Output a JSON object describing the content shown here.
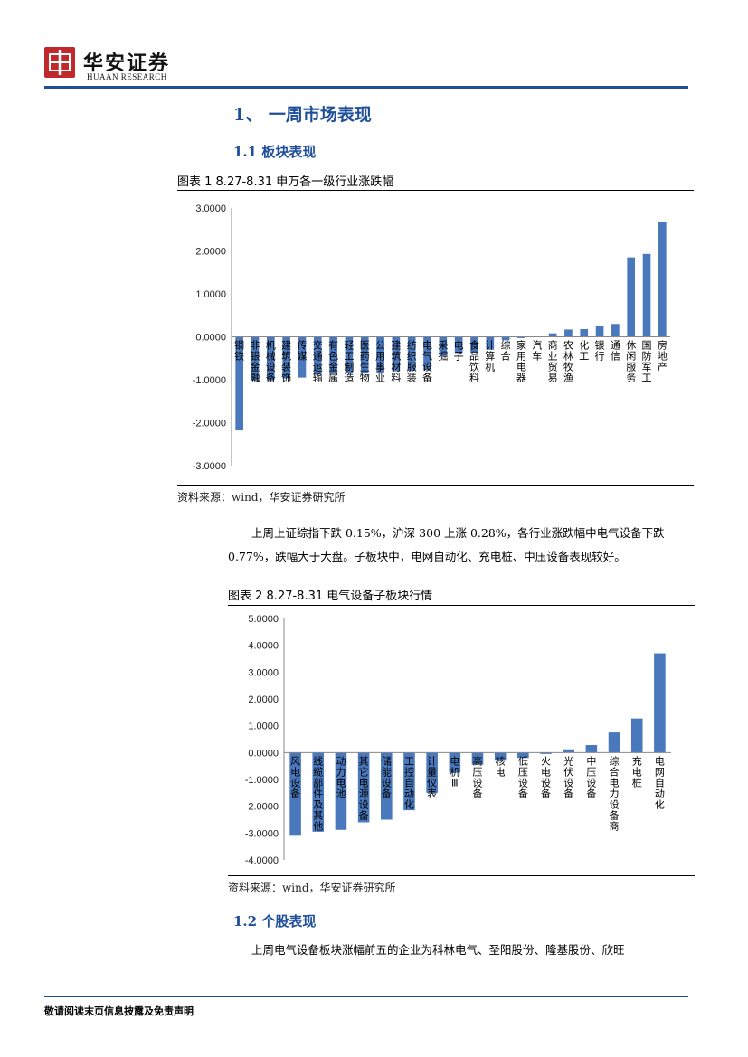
{
  "header": {
    "logo_name": "华安证券",
    "logo_sub": "HUAAN RESEARCH",
    "brand_color": "#1f4e9a",
    "logo_color": "#c0282b"
  },
  "section1_title": "1、 一周市场表现",
  "section1_1_title": "1.1  板块表现",
  "fig1": {
    "title": "图表  1 8.27-8.31 申万各一级行业涨跌幅",
    "source": "资料来源：wind，华安证券研究所"
  },
  "para1": "上周上证综指下跌 0.15%，沪深 300 上涨 0.28%，各行业涨跌幅中电气设备下跌 0.77%，跌幅大于大盘。子板块中，电网自动化、充电桩、中压设备表现较好。",
  "fig2": {
    "title": "图表  2 8.27-8.31 电气设备子板块行情",
    "source": "资料来源：wind，华安证券研究所"
  },
  "section1_2_title": "1.2  个股表现",
  "para2": "上周电气设备板块涨幅前五的企业为科林电气、圣阳股份、隆基股份、欣旺",
  "footer": "敬请阅读末页信息披露及免责声明",
  "chart_data": [
    {
      "type": "bar",
      "title": "",
      "ylim": [
        -3,
        3
      ],
      "yticks": [
        "3.0000",
        "2.0000",
        "1.0000",
        "0.0000",
        "-1.0000",
        "-2.0000",
        "-3.0000"
      ],
      "color": "#4a78bd",
      "categories": [
        "钢铁",
        "非银金融",
        "机械设备",
        "建筑装饰",
        "传媒",
        "交通运输",
        "有色金属",
        "轻工制造",
        "医药生物",
        "公用事业",
        "建筑材料",
        "纺织服装",
        "电气设备",
        "采掘",
        "电子",
        "食品饮料",
        "计算机",
        "综合",
        "家用电器",
        "汽车",
        "商业贸易",
        "农林牧渔",
        "化工",
        "银行",
        "通信",
        "休闲服务",
        "国防军工",
        "房地产"
      ],
      "values": [
        -2.18,
        -1.02,
        -1.0,
        -0.97,
        -0.95,
        -0.88,
        -0.86,
        -0.85,
        -0.84,
        -0.83,
        -0.8,
        -0.79,
        -0.77,
        -0.44,
        -0.38,
        -0.37,
        -0.3,
        -0.08,
        -0.03,
        0.01,
        0.08,
        0.17,
        0.18,
        0.25,
        0.3,
        1.85,
        1.93,
        2.68
      ]
    },
    {
      "type": "bar",
      "title": "",
      "ylim": [
        -4,
        5
      ],
      "yticks": [
        "5.0000",
        "4.0000",
        "3.0000",
        "2.0000",
        "1.0000",
        "0.0000",
        "-1.0000",
        "-2.0000",
        "-3.0000",
        "-4.0000"
      ],
      "color": "#4a78bd",
      "categories": [
        "风电设备",
        "线缆部件及其他",
        "动力电池",
        "其它电源设备",
        "储能设备",
        "工控自动化",
        "计量仪表",
        "电机Ⅲ",
        "高压设备",
        "核电",
        "低压设备",
        "火电设备",
        "光伏设备",
        "中压设备",
        "综合电力设备商",
        "充电桩",
        "电网自动化"
      ],
      "values": [
        -3.1,
        -2.95,
        -2.88,
        -2.6,
        -2.5,
        -2.15,
        -1.5,
        -0.75,
        -0.45,
        -0.3,
        -0.2,
        -0.05,
        0.12,
        0.28,
        0.75,
        1.27,
        3.7
      ]
    }
  ]
}
